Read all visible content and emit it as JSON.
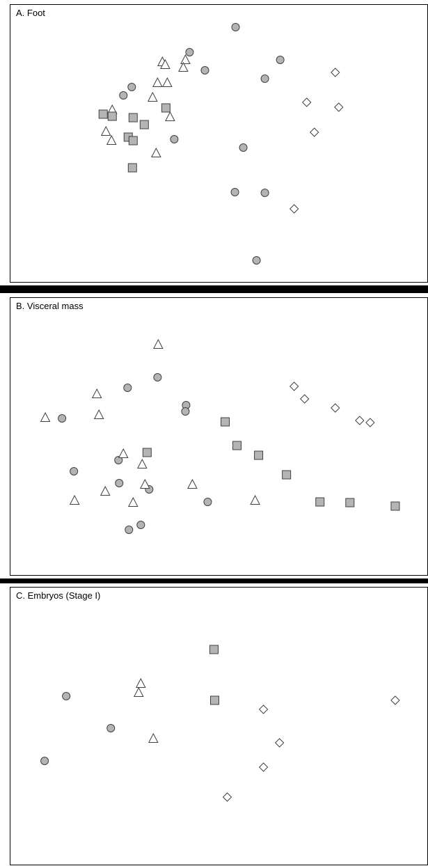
{
  "colors": {
    "circle_fill": "#b4b4b4",
    "square_fill": "#b4b4b4",
    "triangle_fill": "#ffffff",
    "diamond_fill": "#ffffff",
    "stroke": "#404040"
  },
  "chart_data": [
    {
      "type": "scatter",
      "title": "A. Foot",
      "xlim": [
        0,
        600
      ],
      "ylim": [
        0,
        400
      ],
      "grid": false,
      "series": [
        {
          "marker": "circle",
          "points": [
            [
              323,
              32
            ],
            [
              387,
              79
            ],
            [
              365,
              106
            ],
            [
              279,
              94
            ],
            [
              257,
              68
            ],
            [
              174,
              118
            ],
            [
              162,
              130
            ],
            [
              235,
              193
            ],
            [
              334,
              205
            ],
            [
              322,
              269
            ],
            [
              365,
              270
            ],
            [
              353,
              367
            ]
          ]
        },
        {
          "marker": "triangle",
          "points": [
            [
              218,
              82
            ],
            [
              222,
              86
            ],
            [
              251,
              79
            ],
            [
              248,
              90
            ],
            [
              211,
              112
            ],
            [
              225,
              112
            ],
            [
              204,
              133
            ],
            [
              229,
              161
            ],
            [
              146,
              151
            ],
            [
              137,
              182
            ],
            [
              145,
              195
            ],
            [
              209,
              213
            ]
          ]
        },
        {
          "marker": "square",
          "points": [
            [
              133,
              157
            ],
            [
              146,
              160
            ],
            [
              176,
              162
            ],
            [
              192,
              172
            ],
            [
              223,
              148
            ],
            [
              169,
              190
            ],
            [
              176,
              195
            ],
            [
              175,
              234
            ]
          ]
        },
        {
          "marker": "diamond",
          "points": [
            [
              466,
              97
            ],
            [
              425,
              140
            ],
            [
              471,
              147
            ],
            [
              436,
              183
            ],
            [
              407,
              293
            ]
          ]
        }
      ]
    },
    {
      "type": "scatter",
      "title": "B. Visceral mass",
      "xlim": [
        0,
        600
      ],
      "ylim": [
        0,
        400
      ],
      "grid": false,
      "series": [
        {
          "marker": "circle",
          "points": [
            [
              211,
              114
            ],
            [
              168,
              129
            ],
            [
              74,
              173
            ],
            [
              252,
              154
            ],
            [
              251,
              163
            ],
            [
              155,
              233
            ],
            [
              91,
              249
            ],
            [
              156,
              266
            ],
            [
              199,
              275
            ],
            [
              283,
              293
            ],
            [
              187,
              326
            ],
            [
              170,
              333
            ]
          ]
        },
        {
          "marker": "triangle",
          "points": [
            [
              212,
              67
            ],
            [
              124,
              138
            ],
            [
              127,
              168
            ],
            [
              50,
              172
            ],
            [
              162,
              224
            ],
            [
              189,
              239
            ],
            [
              193,
              268
            ],
            [
              261,
              268
            ],
            [
              136,
              278
            ],
            [
              92,
              291
            ],
            [
              176,
              294
            ],
            [
              351,
              291
            ]
          ]
        },
        {
          "marker": "square",
          "points": [
            [
              308,
              178
            ],
            [
              325,
              212
            ],
            [
              356,
              226
            ],
            [
              196,
              222
            ],
            [
              396,
              254
            ],
            [
              444,
              293
            ],
            [
              487,
              294
            ],
            [
              552,
              299
            ]
          ]
        },
        {
          "marker": "diamond",
          "points": [
            [
              407,
              127
            ],
            [
              422,
              145
            ],
            [
              466,
              158
            ],
            [
              501,
              176
            ],
            [
              516,
              179
            ]
          ]
        }
      ]
    },
    {
      "type": "scatter",
      "title": "C. Embryos (Stage I)",
      "xlim": [
        0,
        600
      ],
      "ylim": [
        0,
        400
      ],
      "grid": false,
      "series": [
        {
          "marker": "circle",
          "points": [
            [
              80,
              156
            ],
            [
              144,
              202
            ],
            [
              49,
              249
            ]
          ]
        },
        {
          "marker": "triangle",
          "points": [
            [
              187,
              138
            ],
            [
              184,
              151
            ],
            [
              205,
              217
            ]
          ]
        },
        {
          "marker": "square",
          "points": [
            [
              292,
              89
            ],
            [
              293,
              162
            ]
          ]
        },
        {
          "marker": "diamond",
          "points": [
            [
              363,
              175
            ],
            [
              552,
              162
            ],
            [
              386,
              223
            ],
            [
              363,
              258
            ],
            [
              311,
              301
            ]
          ]
        }
      ]
    }
  ]
}
